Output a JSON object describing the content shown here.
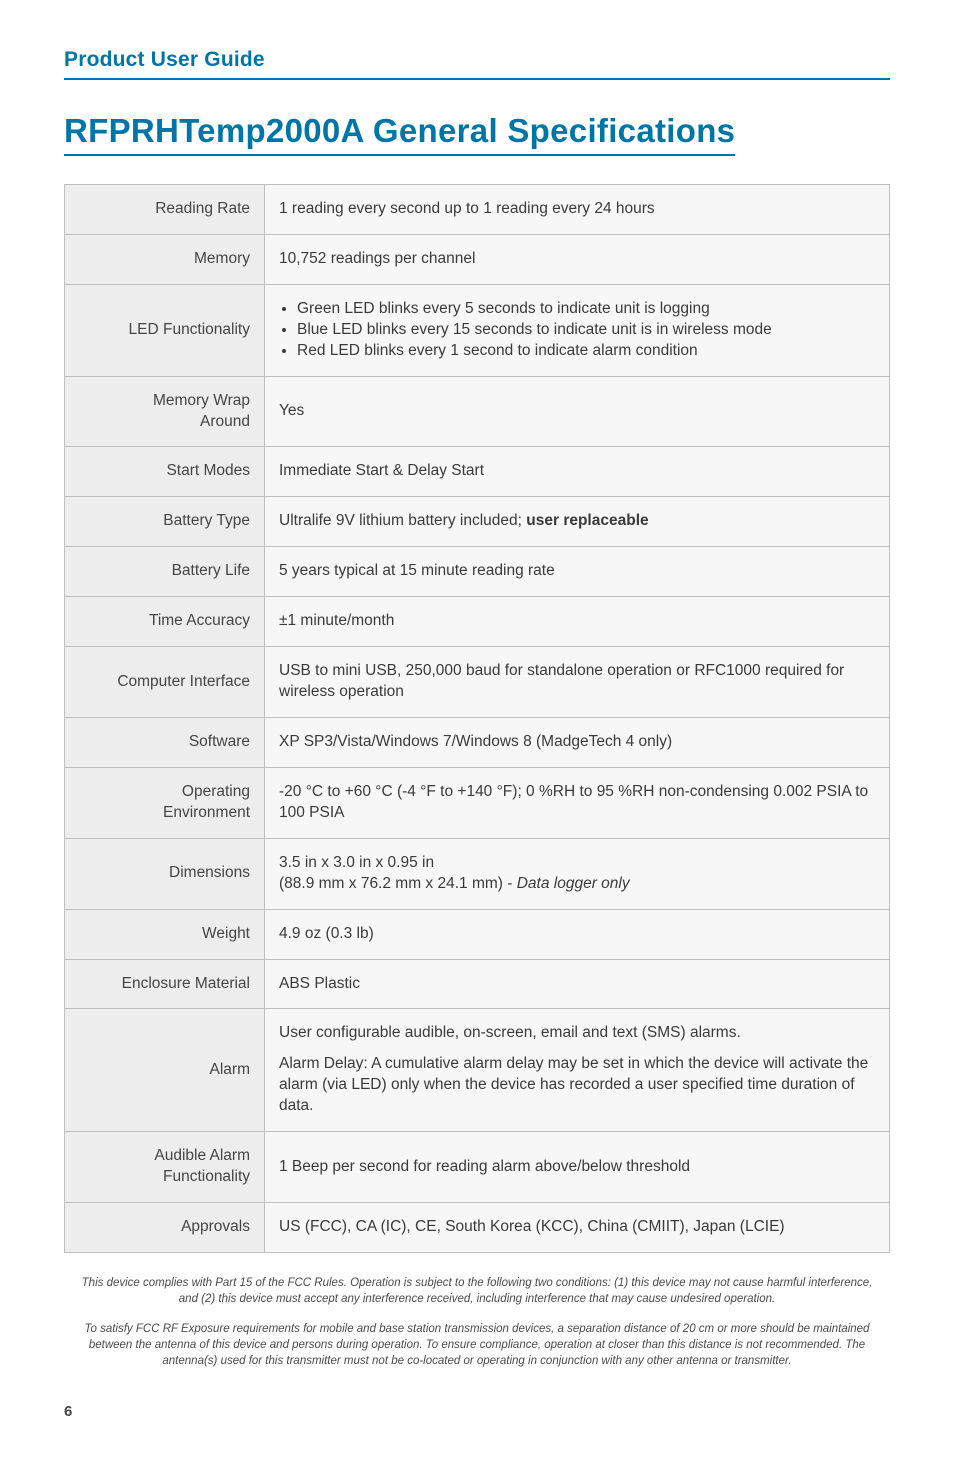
{
  "header": {
    "running_head": "Product User Guide"
  },
  "title": "RFPRHTemp2000A General Specifications",
  "colors": {
    "accent": "#0076a8",
    "label_bg": "#ededed",
    "value_bg": "#f7f7f7",
    "border": "#bfbfbf",
    "text": "#3b3b3b"
  },
  "table": {
    "rows": [
      {
        "label": "Reading Rate",
        "value": "1 reading every second up to 1 reading every 24 hours"
      },
      {
        "label": "Memory",
        "value": "10,752 readings per channel"
      },
      {
        "label": "LED Functionality",
        "bullets": [
          "Green LED blinks every 5 seconds to indicate unit is logging",
          "Blue LED blinks every 15 seconds to indicate unit is in wireless mode",
          "Red LED blinks every 1 second to indicate alarm condition"
        ]
      },
      {
        "label": "Memory Wrap Around",
        "value": "Yes"
      },
      {
        "label": "Start Modes",
        "value": "Immediate Start & Delay Start"
      },
      {
        "label": "Battery Type",
        "html": "Ultralife 9V lithium battery included; <strong>user replaceable</strong>"
      },
      {
        "label": "Battery Life",
        "value": "5 years typical at 15 minute reading rate"
      },
      {
        "label": "Time Accuracy",
        "value": "±1 minute/month"
      },
      {
        "label": "Computer Interface",
        "value": "USB to mini USB, 250,000 baud for standalone operation or RFC1000 required for wireless operation"
      },
      {
        "label": "Software",
        "value": "XP SP3/Vista/Windows 7/Windows 8 (MadgeTech 4 only)"
      },
      {
        "label": "Operating Environment",
        "value": "-20 °C to +60 °C (-4 °F to +140 °F); 0 %RH to 95 %RH non-condensing 0.002 PSIA to 100 PSIA"
      },
      {
        "label": "Dimensions",
        "html": "3.5 in x 3.0 in x 0.95 in<br>(88.9 mm x 76.2 mm x 24.1 mm) - <em>Data logger only</em>"
      },
      {
        "label": "Weight",
        "value": "4.9 oz (0.3 lb)"
      },
      {
        "label": "Enclosure Material",
        "value": "ABS Plastic"
      },
      {
        "label": "Alarm",
        "paragraphs": [
          "User configurable audible, on-screen, email and text (SMS) alarms.",
          "Alarm Delay: A cumulative alarm delay may be set in which the device will activate the alarm (via LED) only when the device has recorded a user specified time duration of data."
        ]
      },
      {
        "label": "Audible Alarm Functionality",
        "value": "1 Beep per second for reading alarm above/below threshold"
      },
      {
        "label": "Approvals",
        "value": "US (FCC), CA (IC), CE, South Korea (KCC), China (CMIIT), Japan (LCIE)"
      }
    ]
  },
  "footnotes": [
    "This device complies with Part 15 of the FCC Rules. Operation is subject to the following two conditions: (1) this device may not cause harmful interference, and (2) this device must accept any interference received, including interference that may cause undesired operation.",
    "To satisfy FCC RF Exposure requirements for mobile and base station transmission devices, a separation distance of 20 cm or more should be maintained between the antenna of this device and persons during operation. To ensure compliance, operation at closer than this distance is not recommended. The antenna(s) used for this transmitter must not be co-located or operating in conjunction with any other antenna or transmitter."
  ],
  "page_number": "6"
}
